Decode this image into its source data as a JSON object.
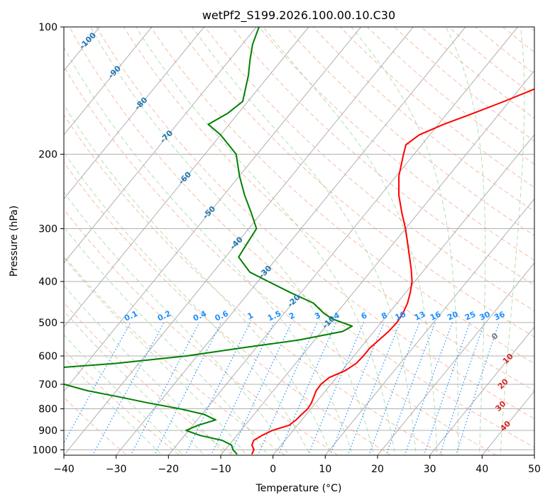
{
  "chart_data": {
    "type": "line",
    "title": "wetPf2_S199.2026.100.00.10.C30",
    "xlabel": "Temperature (°C)",
    "ylabel": "Pressure (hPa)",
    "xlim": [
      -40,
      50
    ],
    "ylim": [
      1030,
      100
    ],
    "y_scale": "log",
    "grid": true,
    "x_ticks": [
      -40,
      -30,
      -20,
      -10,
      0,
      10,
      20,
      30,
      40,
      50
    ],
    "y_ticks": [
      1000,
      900,
      800,
      700,
      600,
      500,
      400,
      300,
      200,
      100
    ],
    "series": [
      {
        "color": "#ff0000",
        "points": [
          [
            1025,
            -4.2
          ],
          [
            1000,
            -4.5
          ],
          [
            975,
            -5.6
          ],
          [
            950,
            -6.0
          ],
          [
            925,
            -5.2
          ],
          [
            900,
            -4.0
          ],
          [
            875,
            -1.6
          ],
          [
            850,
            -1.1
          ],
          [
            825,
            -0.9
          ],
          [
            800,
            -0.6
          ],
          [
            775,
            -0.8
          ],
          [
            750,
            -1.3
          ],
          [
            725,
            -1.8
          ],
          [
            700,
            -1.9
          ],
          [
            675,
            -1.4
          ],
          [
            650,
            0.6
          ],
          [
            625,
            1.6
          ],
          [
            600,
            1.8
          ],
          [
            575,
            1.8
          ],
          [
            550,
            2.3
          ],
          [
            525,
            2.8
          ],
          [
            500,
            3.0
          ],
          [
            475,
            2.7
          ],
          [
            450,
            2.0
          ],
          [
            425,
            0.9
          ],
          [
            400,
            -0.5
          ],
          [
            375,
            -2.5
          ],
          [
            350,
            -4.8
          ],
          [
            325,
            -7.3
          ],
          [
            300,
            -10.0
          ],
          [
            275,
            -13.2
          ],
          [
            250,
            -16.5
          ],
          [
            225,
            -19.5
          ],
          [
            200,
            -22.0
          ],
          [
            190,
            -23.0
          ],
          [
            180,
            -22.0
          ],
          [
            170,
            -19.0
          ],
          [
            160,
            -15.0
          ],
          [
            150,
            -11.0
          ],
          [
            140,
            -7.0
          ],
          [
            130,
            -4.0
          ],
          [
            120,
            -2.5
          ],
          [
            110,
            -2.0
          ],
          [
            100,
            -2.0
          ]
        ]
      },
      {
        "color": "#008000",
        "points": [
          [
            1025,
            -7.0
          ],
          [
            1000,
            -8.5
          ],
          [
            975,
            -9.5
          ],
          [
            950,
            -12.0
          ],
          [
            925,
            -17.0
          ],
          [
            900,
            -20.5
          ],
          [
            875,
            -19.0
          ],
          [
            850,
            -16.5
          ],
          [
            825,
            -19.5
          ],
          [
            800,
            -25.0
          ],
          [
            775,
            -32.0
          ],
          [
            750,
            -38.5
          ],
          [
            725,
            -45.5
          ],
          [
            700,
            -51.0
          ],
          [
            675,
            -67.0
          ],
          [
            650,
            -62.0
          ],
          [
            625,
            -44.5
          ],
          [
            600,
            -32.0
          ],
          [
            575,
            -23.0
          ],
          [
            550,
            -13.0
          ],
          [
            525,
            -6.0
          ],
          [
            510,
            -5.0
          ],
          [
            500,
            -7.5
          ],
          [
            490,
            -10.0
          ],
          [
            475,
            -12.5
          ],
          [
            450,
            -16.0
          ],
          [
            425,
            -22.0
          ],
          [
            400,
            -28.0
          ],
          [
            380,
            -33.0
          ],
          [
            350,
            -37.5
          ],
          [
            325,
            -38.0
          ],
          [
            300,
            -38.5
          ],
          [
            275,
            -42.0
          ],
          [
            250,
            -46.0
          ],
          [
            225,
            -50.0
          ],
          [
            200,
            -54.0
          ],
          [
            180,
            -60.0
          ],
          [
            170,
            -64.0
          ],
          [
            160,
            -62.0
          ],
          [
            150,
            -61.0
          ],
          [
            130,
            -64.0
          ],
          [
            120,
            -66.0
          ],
          [
            110,
            -68.0
          ],
          [
            100,
            -69.5
          ]
        ]
      }
    ],
    "isotherm_labels": [
      "-100",
      "-90",
      "-80",
      "-70",
      "-60",
      "-50",
      "-40",
      "-30",
      "-20",
      "-10"
    ],
    "mixing_ratio_labels": [
      "0.1",
      "0.2",
      "0.4",
      "0.6",
      "1",
      "1.5",
      "2",
      "3",
      "4",
      "6",
      "8",
      "10",
      "13",
      "16",
      "20",
      "25",
      "30",
      "36"
    ],
    "theta_e_labels": [
      "0",
      "10",
      "20",
      "30",
      "40"
    ]
  }
}
